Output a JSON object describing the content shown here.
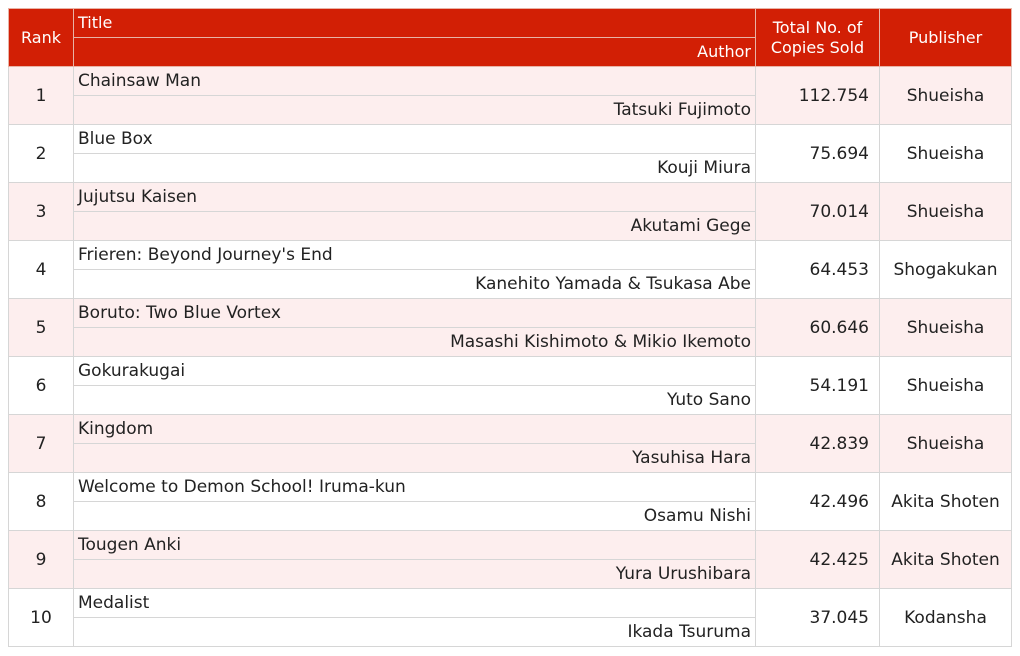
{
  "header": {
    "rank": "Rank",
    "title": "Title",
    "author": "Author",
    "copies": "Total No. of Copies Sold",
    "publisher": "Publisher"
  },
  "rows": [
    {
      "rank": "1",
      "title": "Chainsaw Man",
      "author": "Tatsuki Fujimoto",
      "copies": "112.754",
      "publisher": "Shueisha"
    },
    {
      "rank": "2",
      "title": "Blue Box",
      "author": "Kouji Miura",
      "copies": "75.694",
      "publisher": "Shueisha"
    },
    {
      "rank": "3",
      "title": "Jujutsu Kaisen",
      "author": "Akutami Gege",
      "copies": "70.014",
      "publisher": "Shueisha"
    },
    {
      "rank": "4",
      "title": "Frieren: Beyond Journey's End",
      "author": "Kanehito Yamada & Tsukasa Abe",
      "copies": "64.453",
      "publisher": "Shogakukan"
    },
    {
      "rank": "5",
      "title": "Boruto: Two Blue Vortex",
      "author": "Masashi Kishimoto & Mikio Ikemoto",
      "copies": "60.646",
      "publisher": "Shueisha"
    },
    {
      "rank": "6",
      "title": "Gokurakugai",
      "author": "Yuto Sano",
      "copies": "54.191",
      "publisher": "Shueisha"
    },
    {
      "rank": "7",
      "title": "Kingdom",
      "author": "Yasuhisa Hara",
      "copies": "42.839",
      "publisher": "Shueisha"
    },
    {
      "rank": "8",
      "title": "Welcome to Demon School! Iruma-kun",
      "author": "Osamu Nishi",
      "copies": "42.496",
      "publisher": "Akita Shoten"
    },
    {
      "rank": "9",
      "title": "Tougen Anki",
      "author": "Yura Urushibara",
      "copies": "42.425",
      "publisher": "Akita Shoten"
    },
    {
      "rank": "10",
      "title": "Medalist",
      "author": "Ikada Tsuruma",
      "copies": "37.045",
      "publisher": "Kodansha"
    }
  ],
  "colors": {
    "header_bg": "#d21f05",
    "header_text": "#ffffff",
    "odd_row_bg": "#fdeeee",
    "even_row_bg": "#ffffff"
  }
}
